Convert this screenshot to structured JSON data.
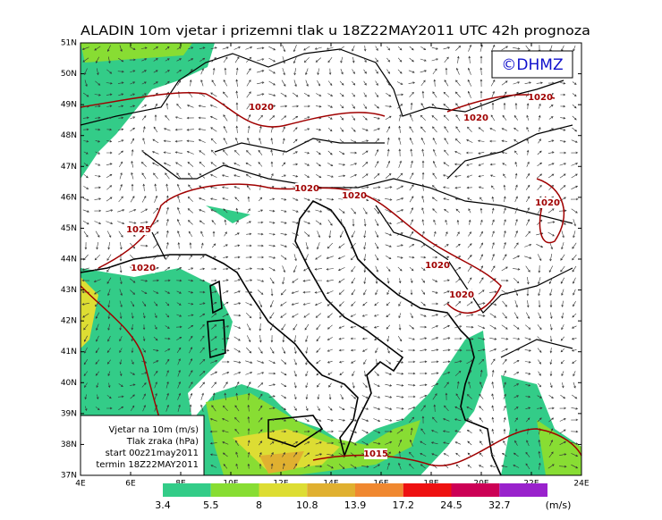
{
  "title": "ALADIN 10m vjetar i prizemni tlak u 18Z22MAY2011 UTC 42h prognoza",
  "logo": "©DHMZ",
  "lat_labels": [
    "51N",
    "50N",
    "49N",
    "48N",
    "47N",
    "46N",
    "45N",
    "44N",
    "43N",
    "42N",
    "41N",
    "40N",
    "39N",
    "38N",
    "37N"
  ],
  "lon_labels": [
    "4E",
    "6E",
    "8E",
    "10E",
    "12E",
    "14E",
    "16E",
    "18E",
    "20E",
    "22E",
    "24E"
  ],
  "info_box": [
    "Vjetar na 10m (m/s)",
    "Tlak zraka (hPa)",
    "start 00z21may2011",
    "termin 18Z22MAY2011"
  ],
  "isobar_labels": [
    "1020",
    "1020",
    "1020",
    "1020",
    "1020",
    "1025",
    "1020",
    "1020",
    "1020",
    "1020",
    "1015"
  ],
  "colorbar": {
    "labels": [
      "3.4",
      "5.5",
      "8",
      "10.8",
      "13.9",
      "17.2",
      "24.5",
      "32.7"
    ],
    "colors": [
      "#33cc88",
      "#88dd33",
      "#dddd33",
      "#e0b030",
      "#f08830",
      "#ee1111",
      "#cc0055",
      "#9922cc"
    ],
    "unit": "(m/s)"
  }
}
